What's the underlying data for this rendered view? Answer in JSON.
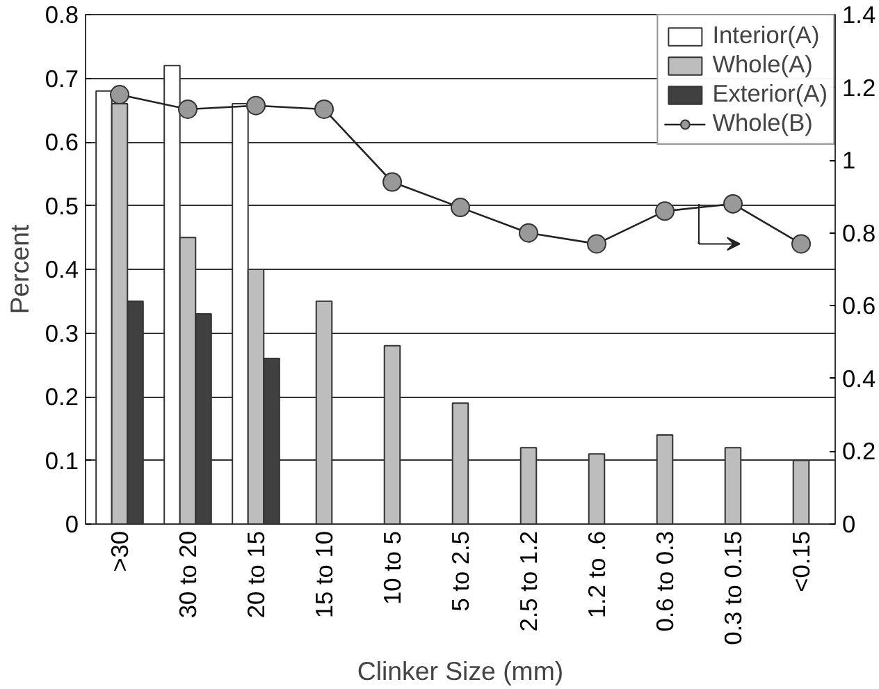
{
  "chart_data": {
    "type": "bar",
    "xlabel": "Clinker Size (mm)",
    "ylabel": "Percent",
    "categories": [
      ">30",
      "30 to 20",
      "20 to 15",
      "15 to 10",
      "10 to 5",
      "5 to 2.5",
      "2.5 to 1.2",
      "1.2 to .6",
      "0.6 to 0.3",
      "0.3 to 0.15",
      "<0.15"
    ],
    "series": [
      {
        "name": "Interior(A)",
        "color": "#ffffff",
        "values": [
          0.68,
          0.72,
          0.66,
          null,
          null,
          null,
          null,
          null,
          null,
          null,
          null
        ]
      },
      {
        "name": "Whole(A)",
        "color": "#bdbdbd",
        "values": [
          0.66,
          0.45,
          0.4,
          0.35,
          0.28,
          0.19,
          0.12,
          0.11,
          0.14,
          0.12,
          0.1
        ]
      },
      {
        "name": "Exterior(A)",
        "color": "#404040",
        "values": [
          0.35,
          0.33,
          0.26,
          null,
          null,
          null,
          null,
          null,
          null,
          null,
          null
        ]
      },
      {
        "name": "Whole(B)",
        "type": "line",
        "axis": "y2",
        "marker": "circle",
        "color": "#999999",
        "values": [
          1.18,
          1.14,
          1.15,
          1.14,
          0.94,
          0.87,
          0.8,
          0.77,
          0.86,
          0.88,
          0.77
        ]
      }
    ],
    "ylim": [
      0,
      0.8
    ],
    "yticks": [
      0,
      0.1,
      0.2,
      0.3,
      0.4,
      0.5,
      0.6,
      0.7,
      0.8
    ],
    "y2lim": [
      0,
      1.4
    ],
    "y2ticks": [
      0,
      0.2,
      0.4,
      0.6,
      0.8,
      1,
      1.2,
      1.4
    ],
    "grid": "y",
    "legend": "top right"
  }
}
